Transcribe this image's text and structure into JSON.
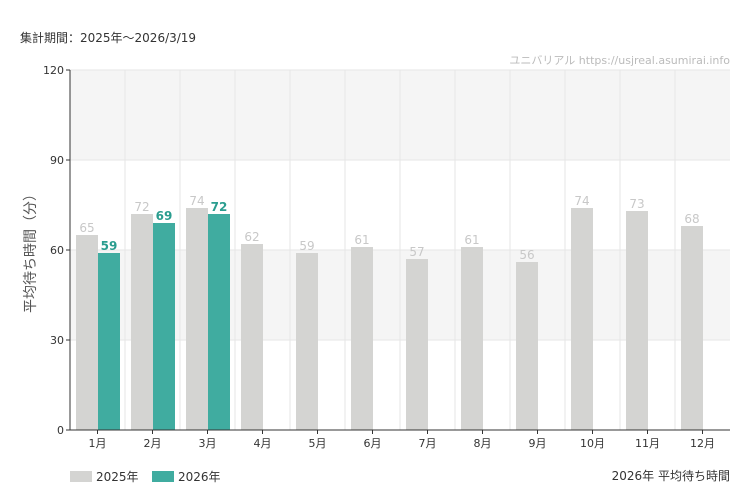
{
  "header": {
    "period": "集計期間：2025年～2026/3/19",
    "credit": "ユニバリアル  https://usjreal.asumirai.info"
  },
  "colors": {
    "y2025": "#d4d4d2",
    "y2026": "#40aca0",
    "label2025": "#c8c8c8",
    "label2026": "#2a9d8f"
  },
  "chart_data": {
    "type": "bar",
    "title": "2026年 平均待ち時間",
    "ylabel": "平均待ち時間（分）",
    "xlabel": "",
    "ylim": [
      0,
      120
    ],
    "yticks": [
      "0",
      "30",
      "60",
      "90",
      "120"
    ],
    "categories": [
      "1月",
      "2月",
      "3月",
      "4月",
      "5月",
      "6月",
      "7月",
      "8月",
      "9月",
      "10月",
      "11月",
      "12月"
    ],
    "series": [
      {
        "name": "2025年",
        "values": [
          65,
          72,
          74,
          62,
          59,
          61,
          57,
          61,
          56,
          74,
          73,
          68
        ]
      },
      {
        "name": "2026年",
        "values": [
          59,
          69,
          72,
          null,
          null,
          null,
          null,
          null,
          null,
          null,
          null,
          null
        ]
      }
    ],
    "legend": "bottom-left"
  }
}
